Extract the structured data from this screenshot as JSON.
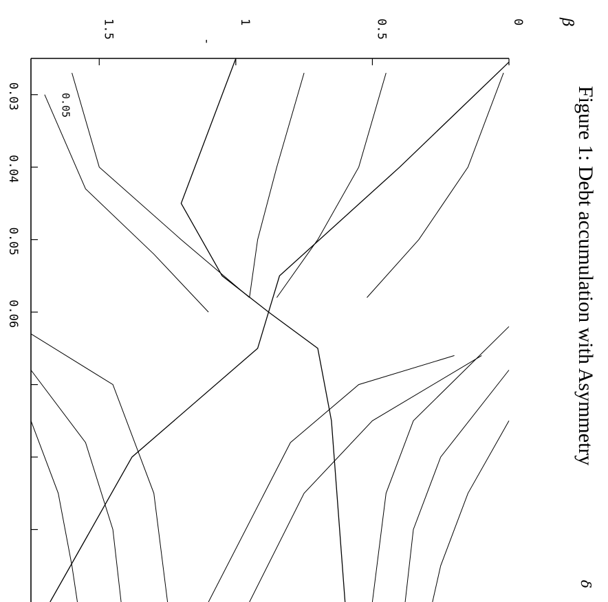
{
  "figure": {
    "caption": "Figure 1: Debt accumulation with Asymmetry",
    "beta_symbol": "β",
    "delta_symbol": "δ"
  },
  "chart_data": {
    "type": "line",
    "title": "",
    "xlabel": "δ",
    "ylabel": "β",
    "xlim": [
      0.025,
      0.1
    ],
    "ylim": [
      0,
      1.75
    ],
    "x_ticks": [
      0.03,
      0.04,
      0.05,
      0.06,
      0.07,
      0.08,
      0.09
    ],
    "x_tick_labels": [
      "0.03",
      "0.04",
      "0.05",
      "0.06",
      "",
      "",
      ""
    ],
    "y_ticks": [
      0,
      0.5,
      1,
      1.5
    ],
    "y_tick_labels": [
      "0",
      "0.5",
      "1",
      "1.5"
    ],
    "extra_tick": {
      "y": 1.14,
      "label": "-"
    },
    "stray_label": {
      "x": 0.0305,
      "y": 1.65,
      "label": "0.05"
    },
    "saddle_point": {
      "x": 0.06,
      "y": 0.88
    },
    "separatrices": [
      {
        "name": "",
        "points": [
          [
            0.0255,
            0.0
          ],
          [
            0.04,
            0.4
          ],
          [
            0.055,
            0.84
          ],
          [
            0.06,
            0.88
          ],
          [
            0.065,
            0.92
          ],
          [
            0.08,
            1.38
          ],
          [
            0.1,
            1.68
          ]
        ]
      },
      {
        "name": "",
        "points": [
          [
            0.025,
            1.0
          ],
          [
            0.045,
            1.2
          ],
          [
            0.055,
            1.05
          ],
          [
            0.06,
            0.88
          ],
          [
            0.065,
            0.7
          ],
          [
            0.075,
            0.65
          ],
          [
            0.1,
            0.6
          ]
        ]
      }
    ],
    "trajectories": [
      {
        "points": [
          [
            0.027,
            0.02
          ],
          [
            0.04,
            0.15
          ],
          [
            0.05,
            0.33
          ],
          [
            0.058,
            0.52
          ]
        ]
      },
      {
        "points": [
          [
            0.027,
            0.45
          ],
          [
            0.04,
            0.55
          ],
          [
            0.05,
            0.7
          ],
          [
            0.058,
            0.85
          ]
        ]
      },
      {
        "points": [
          [
            0.027,
            0.75
          ],
          [
            0.04,
            0.85
          ],
          [
            0.05,
            0.92
          ],
          [
            0.058,
            0.95
          ]
        ]
      },
      {
        "points": [
          [
            0.027,
            1.6
          ],
          [
            0.04,
            1.5
          ],
          [
            0.05,
            1.2
          ],
          [
            0.058,
            0.95
          ]
        ]
      },
      {
        "points": [
          [
            0.03,
            1.7
          ],
          [
            0.043,
            1.55
          ],
          [
            0.052,
            1.3
          ],
          [
            0.06,
            1.1
          ]
        ]
      },
      {
        "points": [
          [
            0.062,
            0.0
          ],
          [
            0.075,
            0.35
          ],
          [
            0.085,
            0.45
          ],
          [
            0.1,
            0.5
          ]
        ]
      },
      {
        "points": [
          [
            0.068,
            0.0
          ],
          [
            0.08,
            0.25
          ],
          [
            0.09,
            0.35
          ],
          [
            0.1,
            0.38
          ]
        ]
      },
      {
        "points": [
          [
            0.075,
            0.0
          ],
          [
            0.085,
            0.15
          ],
          [
            0.095,
            0.25
          ],
          [
            0.1,
            0.28
          ]
        ]
      },
      {
        "points": [
          [
            0.063,
            1.75
          ],
          [
            0.07,
            1.45
          ],
          [
            0.085,
            1.3
          ],
          [
            0.1,
            1.25
          ]
        ]
      },
      {
        "points": [
          [
            0.068,
            1.75
          ],
          [
            0.078,
            1.55
          ],
          [
            0.09,
            1.45
          ],
          [
            0.1,
            1.42
          ]
        ]
      },
      {
        "points": [
          [
            0.075,
            1.75
          ],
          [
            0.085,
            1.65
          ],
          [
            0.095,
            1.6
          ],
          [
            0.1,
            1.58
          ]
        ]
      },
      {
        "points": [
          [
            0.066,
            0.2
          ],
          [
            0.07,
            0.55
          ],
          [
            0.078,
            0.8
          ],
          [
            0.1,
            1.1
          ]
        ]
      },
      {
        "points": [
          [
            0.066,
            0.1
          ],
          [
            0.075,
            0.5
          ],
          [
            0.085,
            0.75
          ],
          [
            0.1,
            0.95
          ]
        ]
      }
    ]
  }
}
